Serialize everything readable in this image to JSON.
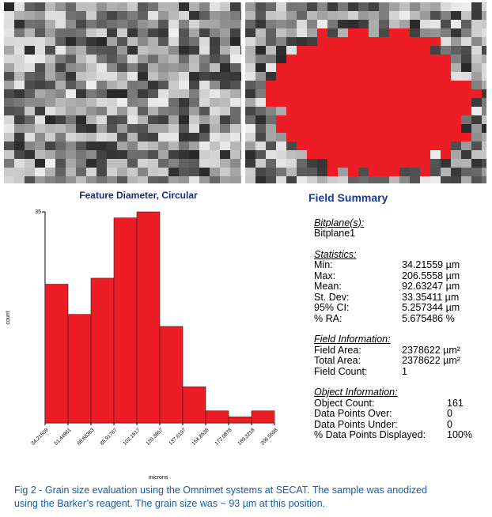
{
  "chart_data": {
    "type": "histogram",
    "title": "Feature Diameter, Circular",
    "x_label": "microns",
    "y_label": "count",
    "bins": [
      34.21559,
      51.44961,
      68.68363,
      85.91767,
      103.1517,
      120.3857,
      137.6197,
      154.8538,
      172.0878,
      189.3218,
      206.5558
    ],
    "values": [
      23,
      18,
      24,
      34,
      35,
      16,
      6,
      2,
      1,
      2
    ],
    "color": "#ee1c24",
    "xlim": [
      34.21559,
      206.5558
    ],
    "xticks": [
      34.21559,
      51.44961,
      68.68363,
      85.91767,
      103.1517,
      120.3857,
      137.6197,
      154.8538,
      172.0878,
      189.3218,
      206.5558
    ],
    "ylim": [
      0,
      35
    ],
    "yticks": [
      35
    ]
  },
  "summary": {
    "title": "Field Summary",
    "sections": [
      {
        "heading": "Bitplane(s):",
        "rows": [
          [
            "Bitplane1"
          ]
        ]
      },
      {
        "heading": "Statistics:",
        "rows": [
          [
            "Min:",
            "34.21559 µm"
          ],
          [
            "Max:",
            "206.5558 µm"
          ],
          [
            "Mean:",
            "92.63247 µm"
          ],
          [
            "St. Dev:",
            "33.35411 µm"
          ],
          [
            "95% CI:",
            "5.257344 µm"
          ],
          [
            "% RA:",
            "5.675486 %"
          ]
        ]
      },
      {
        "heading": "Field Information:",
        "rows": [
          [
            "Field Area:",
            "2378622 µm²"
          ],
          [
            "Total Area:",
            "2378622 µm²"
          ],
          [
            "Field Count:",
            "1"
          ]
        ]
      },
      {
        "heading": "Object Information:",
        "rows": [
          [
            "Object Count:",
            "161"
          ],
          [
            "Data Points Over:",
            "0"
          ],
          [
            "Data Points Under:",
            "0"
          ],
          [
            "% Data Points Displayed:",
            "100%"
          ]
        ]
      }
    ]
  },
  "caption": [
    "Fig 2 - Grain size evaluation using the Omnimet systems at SECAT.  The sample was anodized",
    "using the Barker’s reagent. The grain size was ~ 93 µm at this position."
  ]
}
